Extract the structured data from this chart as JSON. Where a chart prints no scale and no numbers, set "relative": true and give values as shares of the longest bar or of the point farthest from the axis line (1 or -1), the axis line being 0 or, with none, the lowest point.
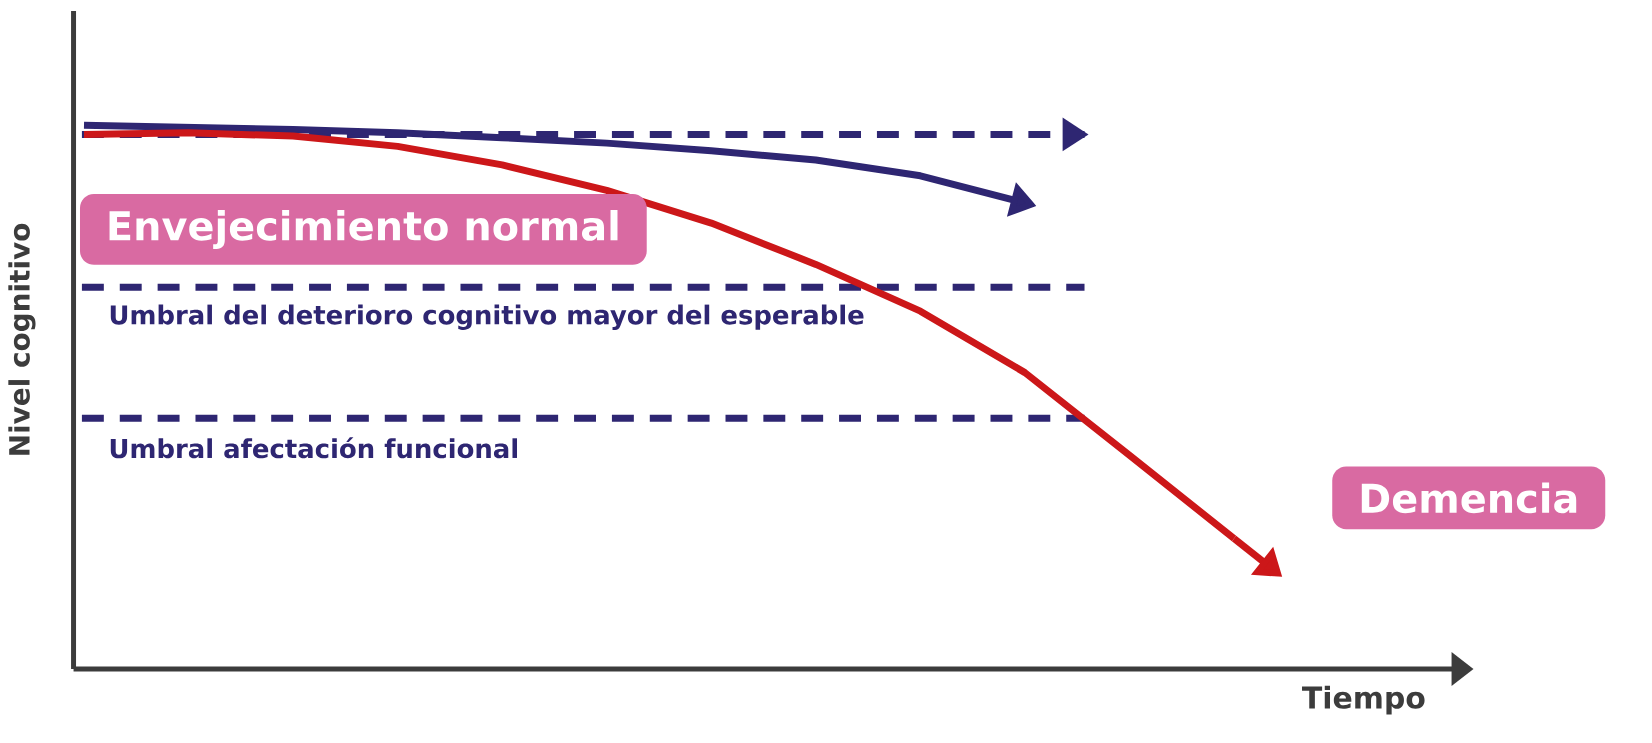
{
  "chart_data": {
    "type": "line",
    "relative": true,
    "xlabel": "Tiempo",
    "ylabel": "Nivel cognitivo",
    "line_style": "solid",
    "marker": "none",
    "categories": [
      null,
      null,
      null,
      null,
      null,
      null,
      null,
      null,
      null,
      null,
      null,
      null
    ],
    "series": [
      {
        "color": "#2e2672",
        "values": [
          1,
          0.996,
          0.992,
          0.986,
          0.977,
          0.967,
          0.953,
          0.936,
          0.907,
          0.857,
          null,
          null
        ]
      },
      {
        "color": "#cc1719",
        "values": [
          0.983,
          0.986,
          0.98,
          0.961,
          0.927,
          0.88,
          0.82,
          0.744,
          0.658,
          0.545,
          0.393,
          0.24
        ]
      }
    ],
    "ref_lines": [
      {
        "axis": "y",
        "value": 0.983,
        "label": null,
        "color": "#2e2672",
        "line_style": "dashed"
      },
      {
        "axis": "y",
        "value": 0.702,
        "label": "Umbral del deterioro cognitivo mayor del esperable",
        "color": "#2e2672",
        "line_style": "dashed"
      },
      {
        "axis": "y",
        "value": 0.461,
        "label": "Umbral afectación funcional",
        "color": "#2e2672",
        "line_style": "dashed"
      }
    ],
    "annotations": [
      "Envejecimiento normal",
      "Demencia"
    ]
  }
}
